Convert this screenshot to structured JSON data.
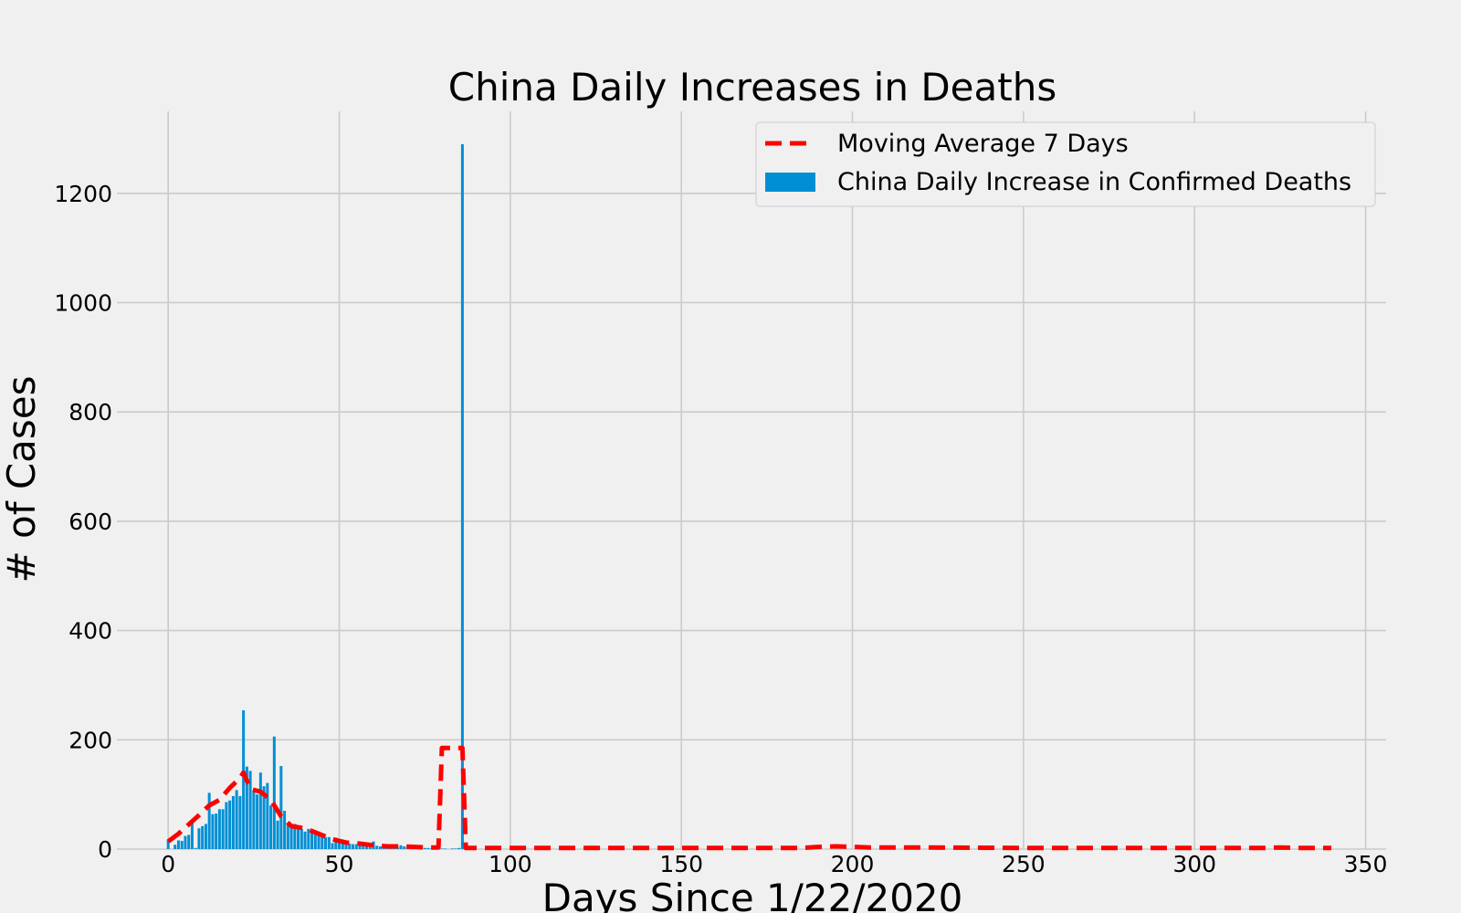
{
  "chart_data": {
    "type": "bar",
    "title": "China Daily Increases in Deaths",
    "xlabel": "Days Since 1/22/2020",
    "ylabel": "# of Cases",
    "xlim": [
      -15,
      356
    ],
    "ylim": [
      0,
      1350
    ],
    "xticks": [
      0,
      50,
      100,
      150,
      200,
      250,
      300,
      350
    ],
    "yticks": [
      0,
      200,
      400,
      600,
      800,
      1000,
      1200
    ],
    "grid": true,
    "legend_position": "top-right",
    "colors": {
      "bar": "#008fd5",
      "line": "#ff0000",
      "background": "#f0f0f0",
      "grid": "#cbcbcb"
    },
    "series": [
      {
        "name": "Moving Average 7 Days",
        "kind": "line",
        "style": "dashed",
        "color": "#ff0000",
        "x": [
          0,
          3,
          6,
          9,
          12,
          15,
          18,
          21,
          22,
          24,
          27,
          30,
          33,
          36,
          40,
          44,
          48,
          52,
          56,
          60,
          64,
          68,
          72,
          76,
          79,
          80,
          81,
          85,
          86,
          87,
          100,
          150,
          185,
          190,
          195,
          200,
          205,
          220,
          250,
          300,
          320,
          325,
          330,
          340
        ],
        "values": [
          14,
          28,
          45,
          62,
          80,
          90,
          112,
          130,
          140,
          110,
          105,
          90,
          60,
          42,
          38,
          28,
          18,
          12,
          10,
          7,
          5,
          5,
          4,
          3,
          3,
          185,
          185,
          185,
          185,
          2,
          2,
          2,
          2,
          4,
          5,
          4,
          3,
          3,
          2,
          2,
          2,
          3,
          2,
          2
        ]
      },
      {
        "name": "China Daily Increase in Confirmed Deaths",
        "kind": "bar",
        "color": "#008fd5",
        "x": [
          0,
          1,
          2,
          3,
          4,
          5,
          6,
          7,
          8,
          9,
          10,
          11,
          12,
          13,
          14,
          15,
          16,
          17,
          18,
          19,
          20,
          21,
          22,
          23,
          24,
          25,
          26,
          27,
          28,
          29,
          30,
          31,
          32,
          33,
          34,
          35,
          36,
          37,
          38,
          39,
          40,
          41,
          42,
          43,
          44,
          45,
          46,
          47,
          48,
          49,
          50,
          51,
          52,
          53,
          54,
          55,
          56,
          57,
          58,
          59,
          60,
          61,
          62,
          63,
          64,
          65,
          66,
          67,
          68,
          69,
          70,
          71,
          72,
          73,
          74,
          75,
          76,
          77,
          78,
          79,
          80,
          81,
          82,
          83,
          84,
          85,
          86
        ],
        "values": [
          17,
          0,
          8,
          16,
          15,
          24,
          26,
          49,
          2,
          38,
          42,
          46,
          103,
          64,
          65,
          73,
          73,
          86,
          89,
          97,
          108,
          97,
          254,
          151,
          143,
          107,
          100,
          140,
          115,
          121,
          80,
          206,
          52,
          152,
          70,
          48,
          44,
          46,
          43,
          37,
          32,
          37,
          32,
          28,
          27,
          29,
          22,
          22,
          11,
          21,
          12,
          14,
          11,
          10,
          9,
          9,
          7,
          8,
          7,
          6,
          14,
          6,
          5,
          3,
          4,
          6,
          4,
          4,
          7,
          5,
          4,
          3,
          3,
          2,
          3,
          2,
          2,
          1,
          4,
          1,
          1,
          1,
          0,
          1,
          1,
          2,
          1290
        ]
      }
    ]
  }
}
